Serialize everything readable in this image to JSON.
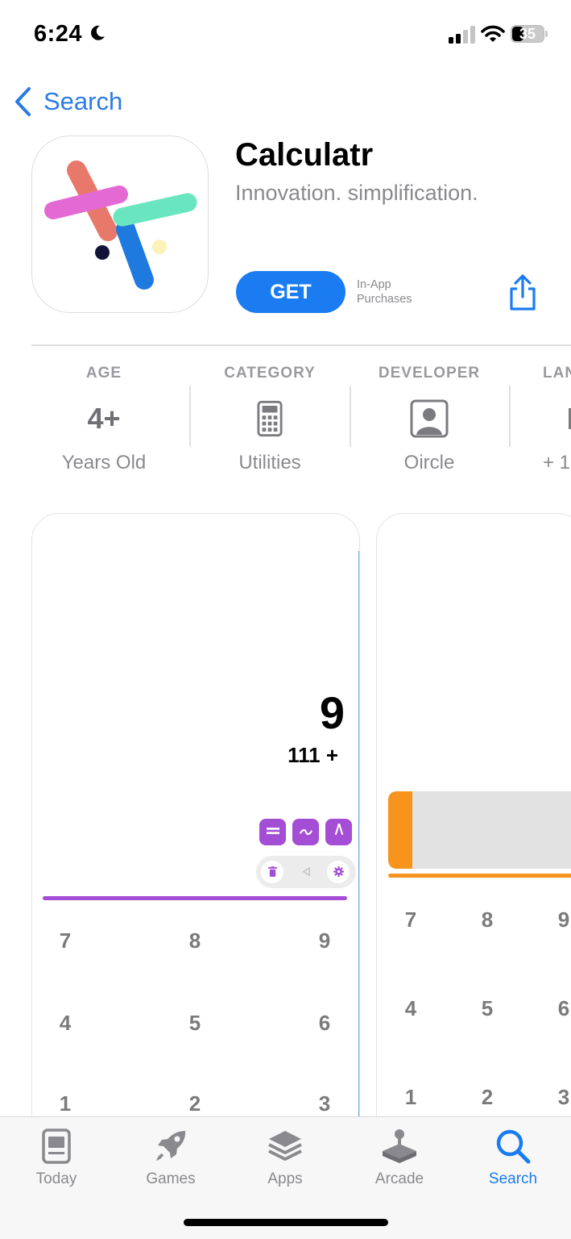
{
  "status_bar": {
    "time": "6:24",
    "battery": "35"
  },
  "nav": {
    "back_label": "Search"
  },
  "app": {
    "name": "Calculatr",
    "subtitle": "Innovation. simplification.",
    "get_label": "GET",
    "iap_line1": "In-App",
    "iap_line2": "Purchases"
  },
  "info": [
    {
      "head": "AGE",
      "mid": "4+",
      "value": "Years Old"
    },
    {
      "head": "CATEGORY",
      "icon": "calculator-icon",
      "value": "Utilities"
    },
    {
      "head": "DEVELOPER",
      "icon": "person-icon",
      "value": "Oircle"
    },
    {
      "head": "LAN",
      "value": "+ 1"
    }
  ],
  "screenshot1": {
    "result": "9",
    "expression": "111 +",
    "keys": [
      "7",
      "8",
      "9",
      "4",
      "5",
      "6",
      "1",
      "2",
      "3"
    ]
  },
  "screenshot2": {
    "keys": [
      "7",
      "8",
      "9",
      "4",
      "5",
      "6",
      "1",
      "2",
      "3"
    ]
  },
  "tabs": [
    {
      "label": "Today",
      "icon": "today-icon"
    },
    {
      "label": "Games",
      "icon": "rocket-icon"
    },
    {
      "label": "Apps",
      "icon": "layers-icon"
    },
    {
      "label": "Arcade",
      "icon": "joystick-icon"
    },
    {
      "label": "Search",
      "icon": "search-icon",
      "active": true
    }
  ],
  "colors": {
    "accent": "#1b7cf2",
    "calc_purple": "#a44ed6",
    "calc_orange": "#f7941d"
  }
}
